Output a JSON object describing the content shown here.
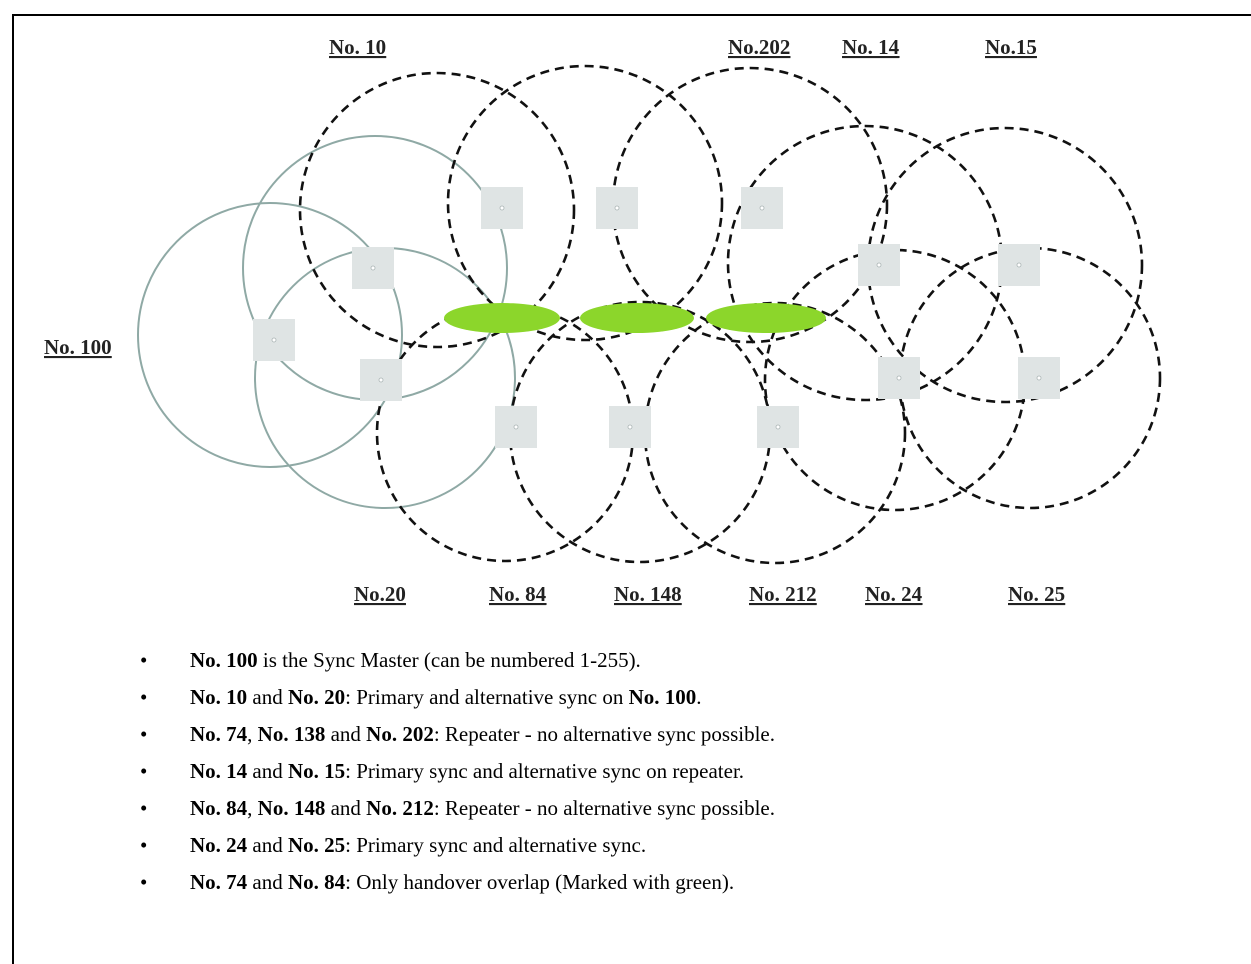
{
  "diagram": {
    "labels": {
      "no10": "No. 10",
      "no202": "No.202",
      "no14": "No. 14",
      "no15": "No.15",
      "no100": "No. 100",
      "no20": "No.20",
      "no84": "No. 84",
      "no148": "No. 148",
      "no212": "No. 212",
      "no24": "No. 24",
      "no25": "No. 25"
    },
    "colors": {
      "master_circle": "#8fa9a5",
      "repeater_circle": "#111111",
      "handover_overlap": "#8cd62b",
      "base_station": "#dfe4e4"
    }
  },
  "notes": [
    {
      "b1": "No. 100",
      "t1": " is the Sync Master (can be numbered 1-255)."
    },
    {
      "b1": "No. 10",
      "t1": " and ",
      "b2": "No. 20",
      "t2": ": Primary and alternative sync on ",
      "b3": "No. 100",
      "t3": "."
    },
    {
      "b1": "No. 74",
      "t1": ", ",
      "b2": "No. 138",
      "t2": " and ",
      "b3": "No. 202",
      "t3": ": Repeater - no alternative sync possible."
    },
    {
      "b1": "No. 14",
      "t1": " and ",
      "b2": "No. 15",
      "t2": ": Primary sync and alternative sync on repeater."
    },
    {
      "b1": "No. 84",
      "t1": ", ",
      "b2": "No. 148",
      "t2": " and ",
      "b3": "No. 212",
      "t3": ": Repeater - no alternative sync possible."
    },
    {
      "b1": "No. 24",
      "t1": " and ",
      "b2": "No. 25",
      "t2": ": Primary sync and alternative sync."
    },
    {
      "b1": "No. 74",
      "t1": " and ",
      "b2": "No. 84",
      "t2": ": Only handover overlap (Marked with green)."
    }
  ]
}
